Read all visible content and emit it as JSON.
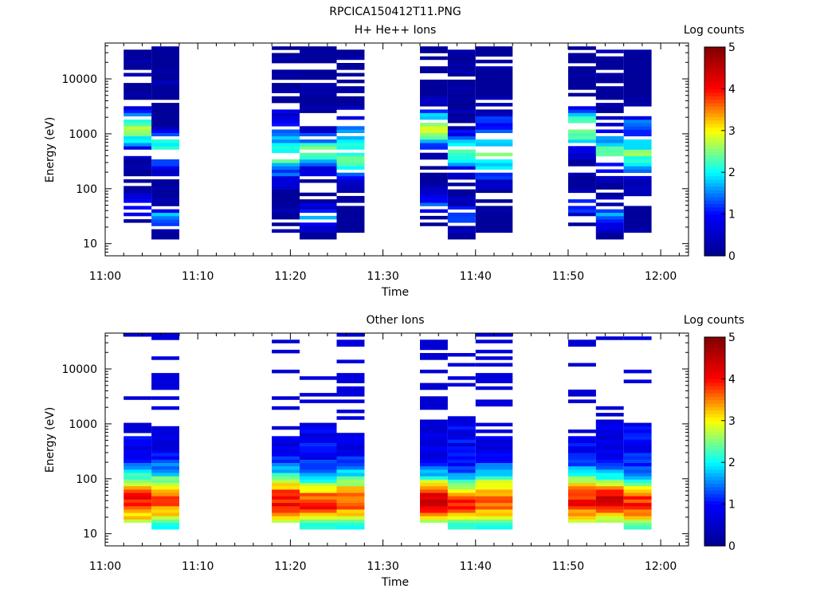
{
  "figure": {
    "title": "RPCICA150412T11.PNG"
  },
  "colors": {
    "jet_stops": [
      "#00008F",
      "#0000FF",
      "#00FFFF",
      "#FFFF00",
      "#FF0000",
      "#800000"
    ],
    "axis": "#000000",
    "background": "#ffffff"
  },
  "chart_data": [
    {
      "type": "heatmap",
      "title": "H+ He++ Ions",
      "xlabel": "Time",
      "ylabel": "Energy (eV)",
      "xlim": [
        "11:00",
        "12:03"
      ],
      "x_ticks": [
        "11:00",
        "11:10",
        "11:20",
        "11:30",
        "11:40",
        "11:50",
        "12:00"
      ],
      "y_scale": "log",
      "ylim": [
        6,
        45000
      ],
      "y_ticks": [
        "10",
        "100",
        "1000",
        "10000"
      ],
      "colorbar": {
        "label": "Log counts",
        "ticks": [
          "0",
          "1",
          "2",
          "3",
          "4",
          "5"
        ],
        "range": [
          0,
          5
        ]
      },
      "time_blocks": [
        {
          "start": "11:02",
          "end": "11:05",
          "profile": "h1"
        },
        {
          "start": "11:05",
          "end": "11:08",
          "profile": "h2"
        },
        {
          "start": "11:18",
          "end": "11:21",
          "profile": "h3"
        },
        {
          "start": "11:21",
          "end": "11:25",
          "profile": "h2"
        },
        {
          "start": "11:25",
          "end": "11:28",
          "profile": "h3"
        },
        {
          "start": "11:34",
          "end": "11:37",
          "profile": "h1"
        },
        {
          "start": "11:37",
          "end": "11:40",
          "profile": "h2"
        },
        {
          "start": "11:40",
          "end": "11:44",
          "profile": "h3"
        },
        {
          "start": "11:50",
          "end": "11:53",
          "profile": "h1"
        },
        {
          "start": "11:53",
          "end": "11:56",
          "profile": "h2"
        },
        {
          "start": "11:56",
          "end": "11:59",
          "profile": "h3"
        }
      ]
    },
    {
      "type": "heatmap",
      "title": "Other Ions",
      "xlabel": "Time",
      "ylabel": "Energy (eV)",
      "xlim": [
        "11:00",
        "12:03"
      ],
      "x_ticks": [
        "11:00",
        "11:10",
        "11:20",
        "11:30",
        "11:40",
        "11:50",
        "12:00"
      ],
      "y_scale": "log",
      "ylim": [
        6,
        45000
      ],
      "y_ticks": [
        "10",
        "100",
        "1000",
        "10000"
      ],
      "colorbar": {
        "label": "Log counts",
        "ticks": [
          "0",
          "1",
          "2",
          "3",
          "4",
          "5"
        ],
        "range": [
          0,
          5
        ]
      },
      "time_blocks": [
        {
          "start": "11:02",
          "end": "11:05",
          "profile": "o1"
        },
        {
          "start": "11:05",
          "end": "11:08",
          "profile": "o2"
        },
        {
          "start": "11:18",
          "end": "11:21",
          "profile": "o1"
        },
        {
          "start": "11:21",
          "end": "11:25",
          "profile": "o3"
        },
        {
          "start": "11:25",
          "end": "11:28",
          "profile": "o2"
        },
        {
          "start": "11:34",
          "end": "11:37",
          "profile": "o4"
        },
        {
          "start": "11:37",
          "end": "11:40",
          "profile": "o3"
        },
        {
          "start": "11:40",
          "end": "11:44",
          "profile": "o2"
        },
        {
          "start": "11:50",
          "end": "11:53",
          "profile": "o1"
        },
        {
          "start": "11:53",
          "end": "11:56",
          "profile": "o4"
        },
        {
          "start": "11:56",
          "end": "11:59",
          "profile": "o3"
        }
      ]
    }
  ]
}
